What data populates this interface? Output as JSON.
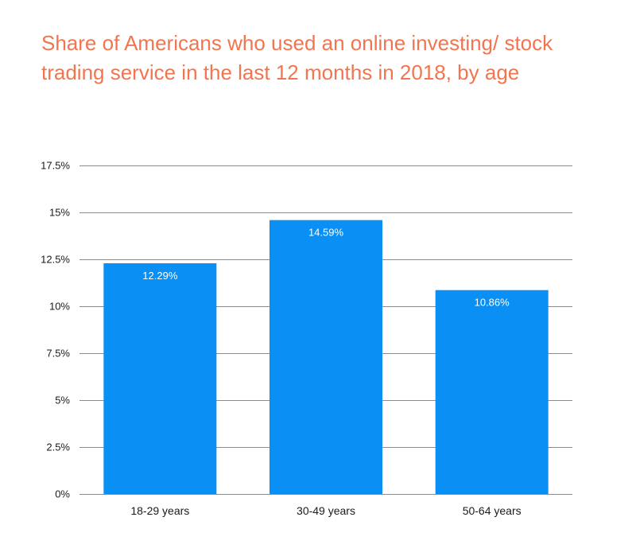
{
  "chart_data": {
    "type": "bar",
    "title": "Share of Americans who used an online investing/ stock trading service in the last 12 months in 2018, by age",
    "categories": [
      "18-29 years",
      "30-49 years",
      "50-64 years"
    ],
    "values": [
      12.29,
      14.59,
      10.86
    ],
    "value_labels": [
      "12.29%",
      "14.59%",
      "10.86%"
    ],
    "ylim": [
      0,
      17.5
    ],
    "yticks": [
      0,
      2.5,
      5,
      7.5,
      10,
      12.5,
      15,
      17.5
    ],
    "ytick_labels": [
      "0%",
      "2.5%",
      "5%",
      "7.5%",
      "10%",
      "12.5%",
      "15%",
      "17.5%"
    ],
    "xlabel": "",
    "ylabel": "",
    "grid": true,
    "colors": {
      "bar": "#0a8ff5",
      "title": "#f2754f",
      "grid": "#8c8c8c",
      "value_label": "#ffffff"
    }
  }
}
